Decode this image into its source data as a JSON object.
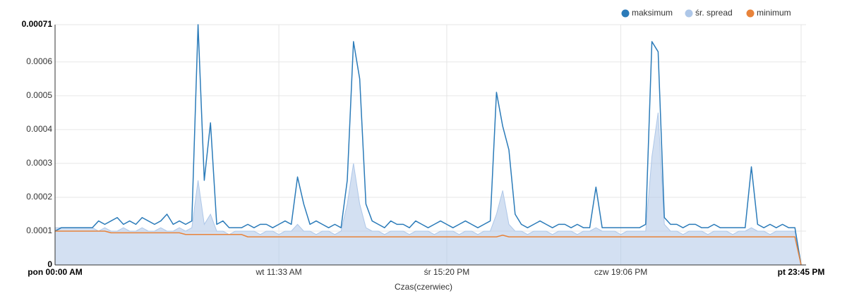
{
  "chart_data": {
    "type": "line",
    "x_label": "Czas(czerwiec)",
    "categories": [
      "pon 00:00 AM",
      null,
      null,
      null,
      null,
      null,
      null,
      null,
      null,
      null,
      null,
      null,
      null,
      null,
      null,
      null,
      null,
      null,
      null,
      null,
      null,
      null,
      null,
      null,
      null,
      null,
      null,
      null,
      null,
      null,
      null,
      null,
      null,
      null,
      null,
      null,
      "wt 11:33 AM",
      null,
      null,
      null,
      null,
      null,
      null,
      null,
      null,
      null,
      null,
      null,
      null,
      null,
      null,
      null,
      null,
      null,
      null,
      null,
      null,
      null,
      null,
      null,
      null,
      null,
      null,
      "śr 15:20 PM",
      null,
      null,
      null,
      null,
      null,
      null,
      null,
      null,
      null,
      null,
      null,
      null,
      null,
      null,
      null,
      null,
      null,
      null,
      null,
      null,
      null,
      null,
      null,
      null,
      null,
      null,
      null,
      "czw 19:06 PM",
      null,
      null,
      null,
      null,
      null,
      null,
      null,
      null,
      null,
      null,
      null,
      null,
      null,
      null,
      null,
      null,
      null,
      null,
      null,
      null,
      null,
      null,
      null,
      null,
      null,
      null,
      null,
      null,
      "pt 23:45 PM"
    ],
    "series": [
      {
        "name": "maksimum",
        "color": "#2b7bb9",
        "style": "line",
        "values": [
          0.0001,
          0.00011,
          0.00011,
          0.00011,
          0.00011,
          0.00011,
          0.00011,
          0.00013,
          0.00012,
          0.00013,
          0.00014,
          0.00012,
          0.00013,
          0.00012,
          0.00014,
          0.00013,
          0.00012,
          0.00013,
          0.00015,
          0.00012,
          0.00013,
          0.00012,
          0.00013,
          0.00071,
          0.00025,
          0.00042,
          0.00012,
          0.00013,
          0.00011,
          0.00011,
          0.00011,
          0.00012,
          0.00011,
          0.00012,
          0.00012,
          0.00011,
          0.00012,
          0.00013,
          0.00012,
          0.00026,
          0.00018,
          0.00012,
          0.00013,
          0.00012,
          0.00011,
          0.00012,
          0.00011,
          0.00025,
          0.00066,
          0.00055,
          0.00018,
          0.00013,
          0.00012,
          0.00011,
          0.00013,
          0.00012,
          0.00012,
          0.00011,
          0.00013,
          0.00012,
          0.00011,
          0.00012,
          0.00013,
          0.00012,
          0.00011,
          0.00012,
          0.00013,
          0.00012,
          0.00011,
          0.00012,
          0.00013,
          0.00051,
          0.00041,
          0.00034,
          0.00015,
          0.00012,
          0.00011,
          0.00012,
          0.00013,
          0.00012,
          0.00011,
          0.00012,
          0.00012,
          0.00011,
          0.00012,
          0.00011,
          0.00011,
          0.00023,
          0.00011,
          0.00011,
          0.00011,
          0.00011,
          0.00011,
          0.00011,
          0.00011,
          0.00012,
          0.00066,
          0.00063,
          0.00014,
          0.00012,
          0.00012,
          0.00011,
          0.00012,
          0.00012,
          0.00011,
          0.00011,
          0.00012,
          0.00011,
          0.00011,
          0.00011,
          0.00011,
          0.00011,
          0.00029,
          0.00012,
          0.00011,
          0.00012,
          0.00011,
          0.00012,
          0.00011,
          0.00011,
          0
        ]
      },
      {
        "name": "śr. spread",
        "color": "#aec7e8",
        "style": "area",
        "values": [
          0.00011,
          0.00011,
          0.00011,
          0.00011,
          0.00011,
          0.00011,
          0.00011,
          0.0001,
          0.00011,
          0.0001,
          0.0001,
          0.00011,
          0.0001,
          0.0001,
          0.00011,
          0.0001,
          0.0001,
          0.00011,
          0.0001,
          0.0001,
          0.00011,
          0.0001,
          0.00011,
          0.00025,
          0.00012,
          0.00015,
          0.0001,
          0.0001,
          9e-05,
          0.0001,
          0.0001,
          0.0001,
          0.0001,
          9e-05,
          0.0001,
          0.0001,
          9e-05,
          0.0001,
          0.0001,
          0.00012,
          0.0001,
          0.0001,
          9e-05,
          0.0001,
          0.0001,
          9e-05,
          0.0001,
          0.00018,
          0.0003,
          0.00018,
          0.00011,
          0.0001,
          0.0001,
          9e-05,
          0.0001,
          0.0001,
          0.0001,
          9e-05,
          0.0001,
          0.0001,
          0.0001,
          9e-05,
          0.0001,
          0.0001,
          0.0001,
          9e-05,
          0.0001,
          0.0001,
          9e-05,
          0.0001,
          0.0001,
          0.00015,
          0.00022,
          0.00012,
          0.0001,
          0.0001,
          9e-05,
          0.0001,
          0.0001,
          0.0001,
          9e-05,
          0.0001,
          0.0001,
          0.0001,
          9e-05,
          0.0001,
          0.0001,
          0.00011,
          0.0001,
          0.0001,
          0.0001,
          9e-05,
          0.0001,
          0.0001,
          0.0001,
          0.0001,
          0.00032,
          0.00045,
          0.00012,
          0.0001,
          0.0001,
          9e-05,
          0.0001,
          0.0001,
          0.0001,
          9e-05,
          0.0001,
          0.0001,
          0.0001,
          9e-05,
          0.0001,
          0.0001,
          0.00011,
          0.0001,
          0.0001,
          9e-05,
          0.0001,
          0.0001,
          0.0001,
          0.0001,
          0
        ]
      },
      {
        "name": "minimum",
        "color": "#e8833a",
        "style": "line",
        "values": [
          0.0001,
          0.0001,
          0.0001,
          0.0001,
          0.0001,
          0.0001,
          0.0001,
          0.0001,
          0.0001,
          9.5e-05,
          9.5e-05,
          9.5e-05,
          9.5e-05,
          9.5e-05,
          9.5e-05,
          9.5e-05,
          9.5e-05,
          9.5e-05,
          9.5e-05,
          9.5e-05,
          9.5e-05,
          9e-05,
          9e-05,
          9e-05,
          9e-05,
          9e-05,
          9e-05,
          9e-05,
          9e-05,
          9e-05,
          9e-05,
          8.3e-05,
          8.3e-05,
          8.3e-05,
          8.3e-05,
          8.3e-05,
          8.3e-05,
          8.3e-05,
          8.3e-05,
          8.3e-05,
          8.3e-05,
          8.3e-05,
          8.3e-05,
          8.3e-05,
          8.3e-05,
          8.3e-05,
          8.3e-05,
          8.3e-05,
          8.3e-05,
          8.3e-05,
          8.3e-05,
          8.3e-05,
          8.3e-05,
          8.3e-05,
          8.3e-05,
          8.3e-05,
          8.3e-05,
          8.3e-05,
          8.3e-05,
          8.3e-05,
          8.3e-05,
          8.3e-05,
          8.3e-05,
          8.3e-05,
          8.3e-05,
          8.3e-05,
          8.3e-05,
          8.3e-05,
          8.3e-05,
          8.3e-05,
          8.3e-05,
          8.3e-05,
          8.8e-05,
          8.3e-05,
          8.3e-05,
          8.3e-05,
          8.3e-05,
          8.3e-05,
          8.3e-05,
          8.3e-05,
          8.3e-05,
          8.3e-05,
          8.3e-05,
          8.3e-05,
          8.3e-05,
          8.3e-05,
          8.3e-05,
          8.3e-05,
          8.3e-05,
          8.3e-05,
          8.3e-05,
          8.3e-05,
          8.3e-05,
          8.3e-05,
          8.3e-05,
          8.3e-05,
          8.3e-05,
          8.3e-05,
          8.3e-05,
          8.3e-05,
          8.3e-05,
          8.3e-05,
          8.3e-05,
          8.3e-05,
          8.3e-05,
          8.3e-05,
          8.3e-05,
          8.3e-05,
          8.3e-05,
          8.3e-05,
          8.3e-05,
          8.3e-05,
          8.3e-05,
          8.3e-05,
          8.3e-05,
          8.3e-05,
          8.3e-05,
          8.3e-05,
          8.3e-05,
          8.3e-05,
          0
        ]
      }
    ],
    "ylim": [
      0,
      0.00071
    ],
    "yticks": [
      0,
      0.0001,
      0.0002,
      0.0003,
      0.0004,
      0.0005,
      0.0006,
      0.00071
    ],
    "grid": true,
    "legend": "top-right"
  }
}
